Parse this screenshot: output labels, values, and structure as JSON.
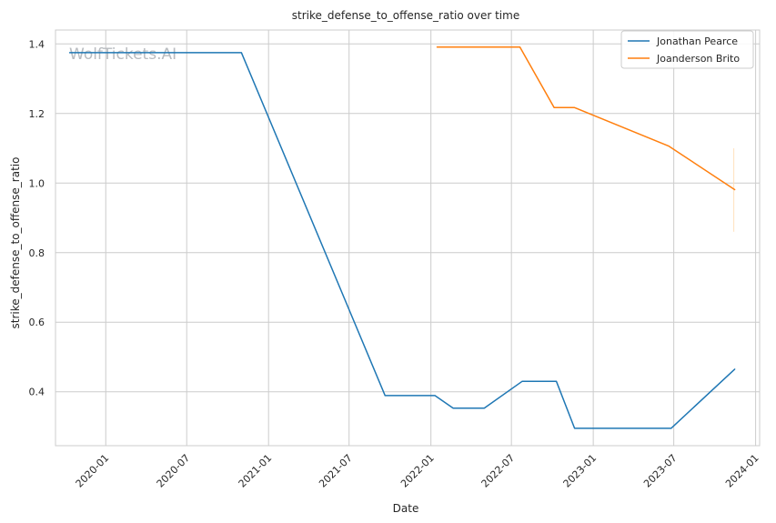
{
  "chart_data": {
    "type": "line",
    "title": "strike_defense_to_offense_ratio over time",
    "xlabel": "Date",
    "ylabel": "strike_defense_to_offense_ratio",
    "xlim": [
      "2019-09-10",
      "2024-01-10"
    ],
    "ylim": [
      0.245,
      1.44
    ],
    "x_ticks": [
      "2020-01",
      "2020-07",
      "2021-01",
      "2021-07",
      "2022-01",
      "2022-07",
      "2023-01",
      "2023-07",
      "2024-01"
    ],
    "y_ticks": [
      0.4,
      0.6,
      0.8,
      1.0,
      1.2,
      1.4
    ],
    "grid": true,
    "legend_position": "top-right",
    "watermark": "WolfTickets.AI",
    "series": [
      {
        "name": "Jonathan Pearce",
        "color": "#1f77b4",
        "points": [
          {
            "x": "2019-10-12",
            "y": 1.375
          },
          {
            "x": "2020-11-01",
            "y": 1.375
          },
          {
            "x": "2021-09-20",
            "y": 0.389
          },
          {
            "x": "2022-01-10",
            "y": 0.389
          },
          {
            "x": "2022-02-20",
            "y": 0.353
          },
          {
            "x": "2022-05-01",
            "y": 0.353
          },
          {
            "x": "2022-07-25",
            "y": 0.43
          },
          {
            "x": "2022-10-10",
            "y": 0.43
          },
          {
            "x": "2022-11-20",
            "y": 0.295
          },
          {
            "x": "2023-06-25",
            "y": 0.295
          },
          {
            "x": "2023-11-15",
            "y": 0.465
          }
        ]
      },
      {
        "name": "Joanderson Brito",
        "color": "#ff7f0e",
        "points": [
          {
            "x": "2022-01-15",
            "y": 1.391
          },
          {
            "x": "2022-07-20",
            "y": 1.391
          },
          {
            "x": "2022-10-05",
            "y": 1.217
          },
          {
            "x": "2022-11-20",
            "y": 1.217
          },
          {
            "x": "2023-06-20",
            "y": 1.106
          },
          {
            "x": "2023-11-15",
            "y": 0.981
          }
        ]
      }
    ]
  }
}
